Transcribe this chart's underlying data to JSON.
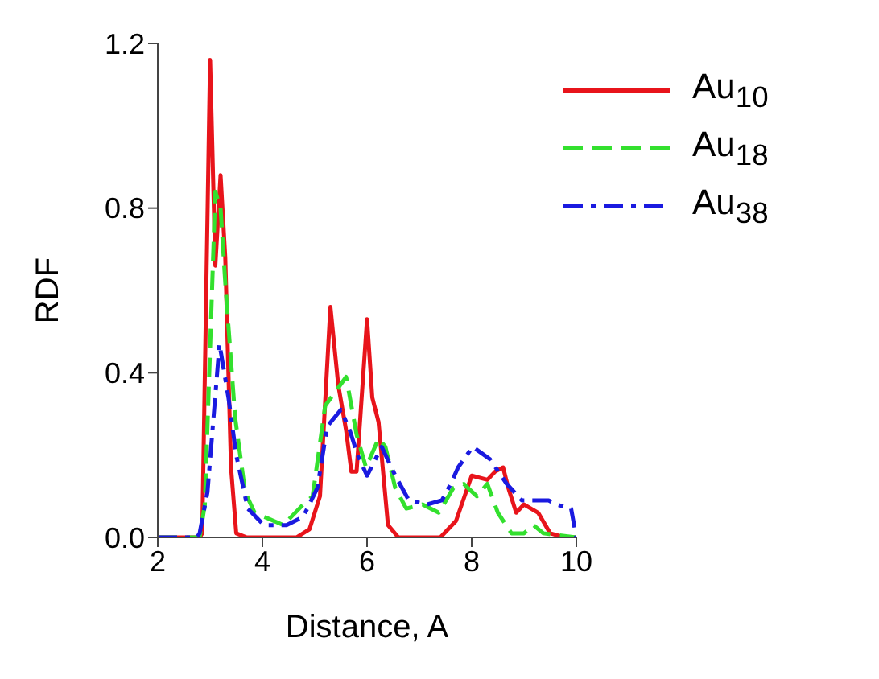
{
  "chart_data": {
    "type": "line",
    "xlabel": "Distance, A",
    "ylabel": "RDF",
    "xlim": [
      2,
      10
    ],
    "xticks": [
      2,
      4,
      6,
      8,
      10
    ],
    "ylim": [
      0,
      1.2
    ],
    "yticks": [
      {
        "value": 0,
        "label": "0.0"
      },
      0.4,
      0.8,
      1.2
    ],
    "grid": false,
    "legend": "top right",
    "marker": "none",
    "series": [
      {
        "name": "Au$_{10}$",
        "color": "#e8141b",
        "line_style": "solid",
        "x": [
          2,
          2.8,
          2.85,
          3.0,
          3.1,
          3.2,
          3.29,
          3.4,
          3.5,
          3.7,
          4.65,
          4.9,
          5.1,
          5.3,
          5.45,
          5.6,
          5.7,
          5.8,
          6.0,
          6.1,
          6.22,
          6.4,
          6.6,
          7.4,
          7.7,
          8.0,
          8.3,
          8.45,
          8.6,
          8.7,
          8.85,
          9.0,
          9.27,
          9.5,
          9.78,
          10
        ],
        "values": [
          0,
          0,
          0.01,
          1.16,
          0.66,
          0.88,
          0.68,
          0.17,
          0.01,
          0,
          0,
          0.02,
          0.1,
          0.56,
          0.37,
          0.26,
          0.16,
          0.16,
          0.53,
          0.34,
          0.28,
          0.03,
          0,
          0,
          0.04,
          0.15,
          0.14,
          0.16,
          0.17,
          0.12,
          0.06,
          0.08,
          0.06,
          0.01,
          0,
          0
        ]
      },
      {
        "name": "Au$_{18}$",
        "color": "#33e02e",
        "line_style": "dashed",
        "x": [
          2,
          2.8,
          2.9,
          3.1,
          3.2,
          3.3,
          3.48,
          3.67,
          3.85,
          4.4,
          4.78,
          4.96,
          5.2,
          5.6,
          5.8,
          5.98,
          6.22,
          6.35,
          6.54,
          6.75,
          7.06,
          7.37,
          7.65,
          7.85,
          7.93,
          8.1,
          8.3,
          8.5,
          8.76,
          9.0,
          9.18,
          9.37,
          10
        ],
        "values": [
          0,
          0,
          0.08,
          0.84,
          0.8,
          0.6,
          0.29,
          0.11,
          0.06,
          0.03,
          0.08,
          0.1,
          0.32,
          0.39,
          0.25,
          0.17,
          0.24,
          0.22,
          0.12,
          0.07,
          0.08,
          0.06,
          0.12,
          0.13,
          0.12,
          0.1,
          0.13,
          0.06,
          0.01,
          0.01,
          0.03,
          0.01,
          0
        ]
      },
      {
        "name": "Au$_{38}$",
        "color": "#1a1ae0",
        "line_style": "dashdot",
        "x": [
          2,
          2.75,
          2.8,
          2.95,
          3.18,
          3.35,
          3.5,
          3.72,
          4.03,
          4.46,
          4.78,
          5.05,
          5.24,
          5.5,
          5.67,
          5.82,
          6.0,
          6.28,
          6.54,
          6.8,
          7.15,
          7.43,
          7.6,
          7.74,
          8.02,
          8.35,
          8.67,
          8.96,
          9.47,
          9.62,
          9.9,
          10
        ],
        "values": [
          0,
          0,
          0.01,
          0.11,
          0.47,
          0.34,
          0.2,
          0.07,
          0.03,
          0.03,
          0.05,
          0.12,
          0.27,
          0.31,
          0.26,
          0.2,
          0.15,
          0.22,
          0.15,
          0.09,
          0.08,
          0.09,
          0.13,
          0.17,
          0.22,
          0.19,
          0.13,
          0.09,
          0.09,
          0.08,
          0.07,
          0
        ]
      }
    ]
  }
}
